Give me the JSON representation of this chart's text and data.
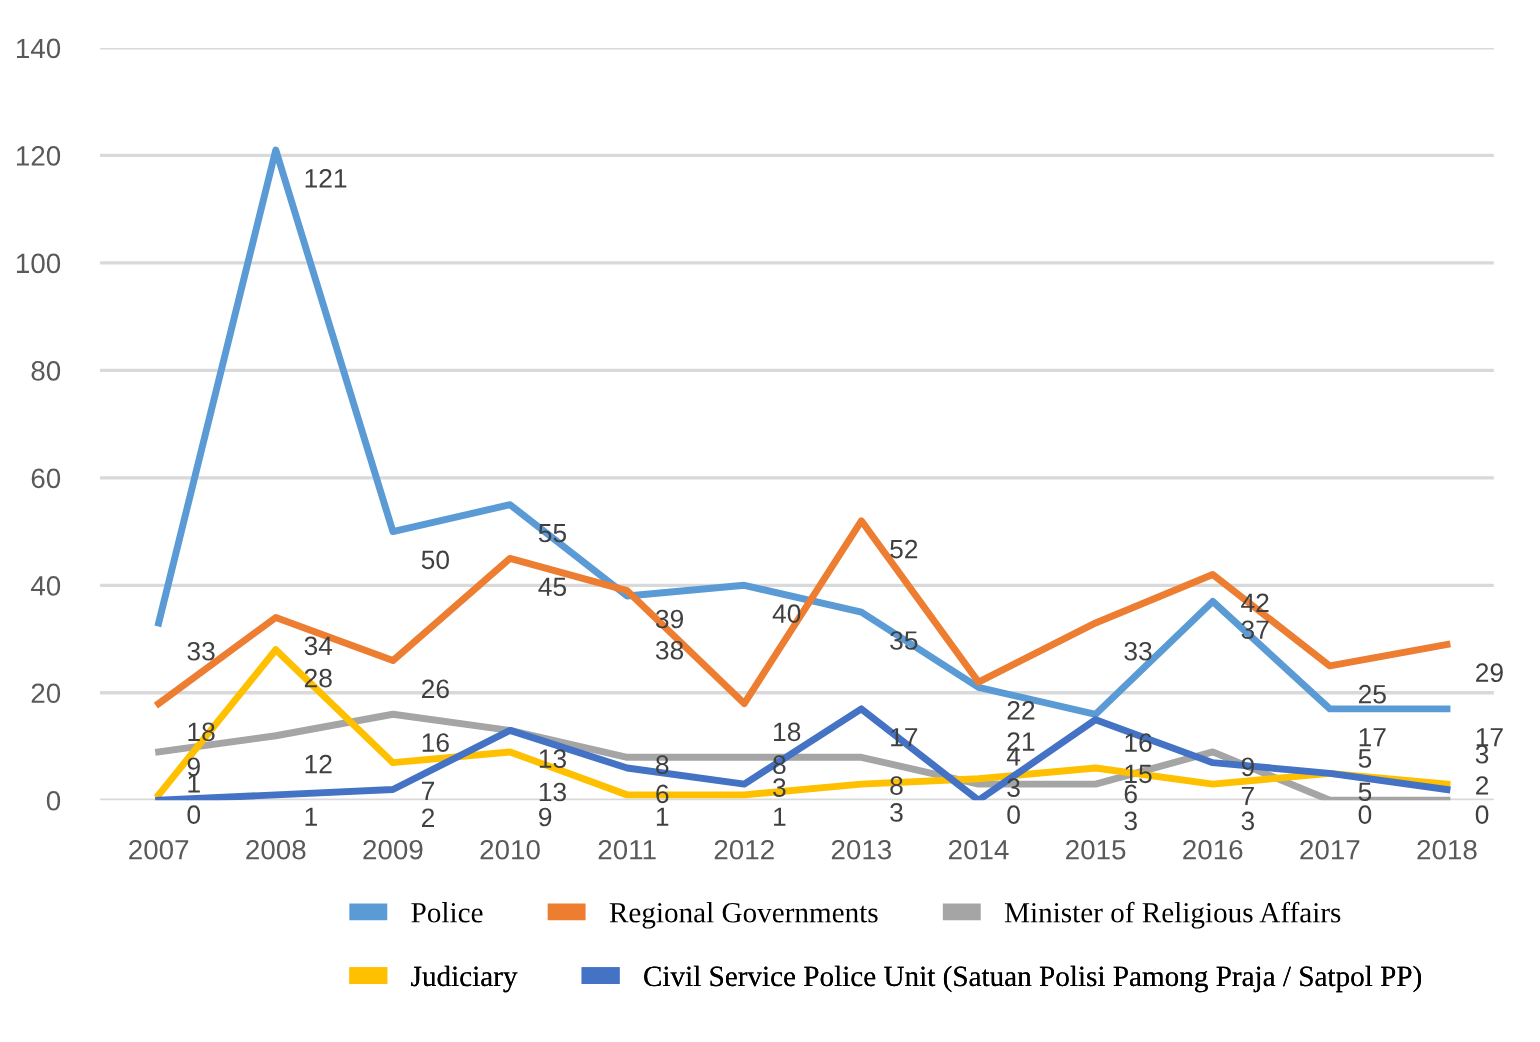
{
  "chart_data": {
    "type": "line",
    "categories": [
      "2007",
      "2008",
      "2009",
      "2010",
      "2011",
      "2012",
      "2013",
      "2014",
      "2015",
      "2016",
      "2017",
      "2018"
    ],
    "series": [
      {
        "name": "Police",
        "color": "#5b9bd5",
        "values": [
          33,
          121,
          50,
          55,
          38,
          40,
          35,
          21,
          16,
          37,
          17,
          17
        ]
      },
      {
        "name": "Regional Governments",
        "color": "#ed7d31",
        "values": [
          18,
          34,
          26,
          45,
          39,
          18,
          52,
          22,
          33,
          42,
          25,
          29
        ]
      },
      {
        "name": "Minister of Religious Affairs",
        "color": "#a5a5a5",
        "values": [
          9,
          12,
          16,
          13,
          8,
          8,
          8,
          3,
          3,
          9,
          0,
          0
        ]
      },
      {
        "name": "Judiciary",
        "color": "#ffc000",
        "values": [
          1,
          28,
          7,
          9,
          1,
          1,
          3,
          4,
          6,
          3,
          5,
          3
        ]
      },
      {
        "name": "Civil Service Police Unit (Satuan Polisi Pamong Praja / Satpol PP)",
        "color": "#4472c4",
        "values": [
          0,
          1,
          2,
          13,
          6,
          3,
          17,
          0,
          15,
          7,
          5,
          2
        ]
      }
    ],
    "ylim": [
      0,
      140
    ],
    "yticks": [
      0,
      20,
      40,
      60,
      80,
      100,
      120,
      140
    ],
    "grid": "y",
    "legend": "bottom",
    "data_labels": true,
    "marker": "none",
    "line_style": "solid"
  }
}
